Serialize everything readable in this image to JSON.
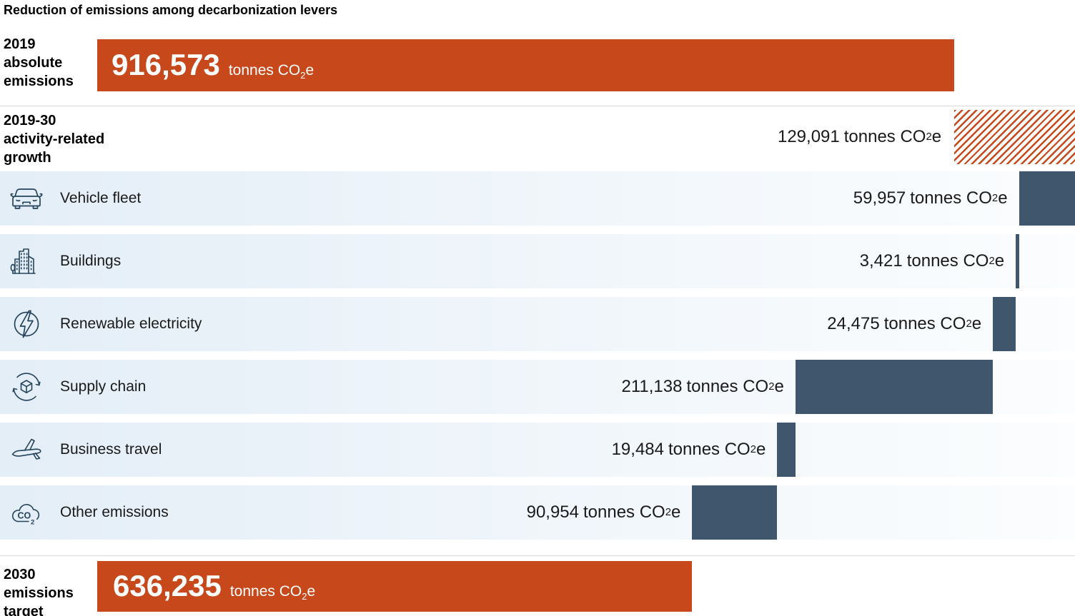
{
  "title": "Reduction of emissions among decarbonization levers",
  "unit": {
    "co": "tonnes CO",
    "sub": "2",
    "e": "e"
  },
  "chart_data": {
    "type": "waterfall-bar",
    "orientation": "horizontal",
    "title": "Reduction of emissions among decarbonization levers",
    "unit": "tonnes CO2e",
    "categories": [
      "2019 absolute emissions",
      "2019-30 activity-related growth",
      "Vehicle fleet",
      "Buildings",
      "Renewable electricity",
      "Supply chain",
      "Business travel",
      "Other emissions",
      "2030 emissions target"
    ],
    "values": [
      916573,
      129091,
      -59957,
      -3421,
      -24475,
      -211138,
      -19484,
      -90954,
      636235
    ],
    "start": {
      "label": "2019 absolute emissions",
      "label_lines": [
        "2019",
        "absolute",
        "emissions"
      ],
      "value": 916573,
      "display": "916,573"
    },
    "growth": {
      "label": "2019-30 activity-related growth",
      "label_lines": [
        "2019-30",
        "activity-related",
        "growth"
      ],
      "value": 129091,
      "display": "129,091",
      "style": "hatched"
    },
    "levers": [
      {
        "id": "vehicle-fleet",
        "label": "Vehicle fleet",
        "icon": "car-icon",
        "value": 59957,
        "display": "59,957"
      },
      {
        "id": "buildings",
        "label": "Buildings",
        "icon": "buildings-icon",
        "value": 3421,
        "display": "3,421"
      },
      {
        "id": "renewable-electricity",
        "label": "Renewable electricity",
        "icon": "lightning-bolt-icon",
        "value": 24475,
        "display": "24,475"
      },
      {
        "id": "supply-chain",
        "label": "Supply chain",
        "icon": "supply-chain-icon",
        "value": 211138,
        "display": "211,138"
      },
      {
        "id": "business-travel",
        "label": "Business travel",
        "icon": "airplane-icon",
        "value": 19484,
        "display": "19,484"
      },
      {
        "id": "other-emissions",
        "label": "Other emissions",
        "icon": "co2-cloud-icon",
        "value": 90954,
        "display": "90,954"
      }
    ],
    "end": {
      "label": "2030 emissions target",
      "label_lines": [
        "2030",
        "emissions",
        "target"
      ],
      "value": 636235,
      "display": "636,235"
    },
    "colors": {
      "emissions_bar": "#C6481B",
      "hatch_stripe": "#C6481B",
      "lever_bar": "#3F566D",
      "icon": "#24435C",
      "row_bg_left": "#E4EEF7",
      "row_bg_right": "#FBFDFE",
      "separator": "#D8D8D8",
      "value_text": "#1A1A1A"
    },
    "layout": {
      "grid": false,
      "legend": false,
      "axes": false
    }
  }
}
